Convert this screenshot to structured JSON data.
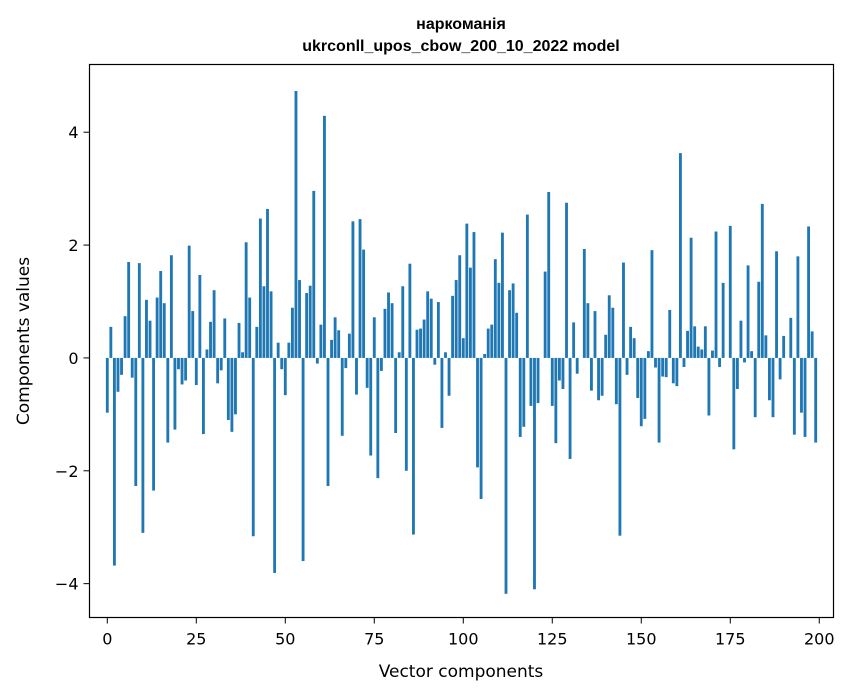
{
  "chart_data": {
    "type": "bar",
    "title": "наркоманія",
    "subtitle": "ukrconll_upos_cbow_200_10_2022 model",
    "xlabel": "Vector components",
    "ylabel": "Components values",
    "xlim": [
      -5,
      204
    ],
    "ylim": [
      -4.6,
      5.2
    ],
    "xticks": [
      0,
      25,
      50,
      75,
      100,
      125,
      150,
      175,
      200
    ],
    "yticks": [
      -4,
      -2,
      0,
      2,
      4
    ],
    "xtick_labels": [
      "0",
      "25",
      "50",
      "75",
      "100",
      "125",
      "150",
      "175",
      "200"
    ],
    "ytick_labels": [
      "−4",
      "−2",
      "0",
      "2",
      "4"
    ],
    "grid": false,
    "bar_color": "#1f77b4",
    "x": [
      0,
      1,
      2,
      3,
      4,
      5,
      6,
      7,
      8,
      9,
      10,
      11,
      12,
      13,
      14,
      15,
      16,
      17,
      18,
      19,
      20,
      21,
      22,
      23,
      24,
      25,
      26,
      27,
      28,
      29,
      30,
      31,
      32,
      33,
      34,
      35,
      36,
      37,
      38,
      39,
      40,
      41,
      42,
      43,
      44,
      45,
      46,
      47,
      48,
      49,
      50,
      51,
      52,
      53,
      54,
      55,
      56,
      57,
      58,
      59,
      60,
      61,
      62,
      63,
      64,
      65,
      66,
      67,
      68,
      69,
      70,
      71,
      72,
      73,
      74,
      75,
      76,
      77,
      78,
      79,
      80,
      81,
      82,
      83,
      84,
      85,
      86,
      87,
      88,
      89,
      90,
      91,
      92,
      93,
      94,
      95,
      96,
      97,
      98,
      99,
      100,
      101,
      102,
      103,
      104,
      105,
      106,
      107,
      108,
      109,
      110,
      111,
      112,
      113,
      114,
      115,
      116,
      117,
      118,
      119,
      120,
      121,
      122,
      123,
      124,
      125,
      126,
      127,
      128,
      129,
      130,
      131,
      132,
      133,
      134,
      135,
      136,
      137,
      138,
      139,
      140,
      141,
      142,
      143,
      144,
      145,
      146,
      147,
      148,
      149,
      150,
      151,
      152,
      153,
      154,
      155,
      156,
      157,
      158,
      159,
      160,
      161,
      162,
      163,
      164,
      165,
      166,
      167,
      168,
      169,
      170,
      171,
      172,
      173,
      174,
      175,
      176,
      177,
      178,
      179,
      180,
      181,
      182,
      183,
      184,
      185,
      186,
      187,
      188,
      189,
      190,
      191,
      192,
      193,
      194,
      195,
      196,
      197,
      198,
      199
    ],
    "values": [
      -0.97,
      0.55,
      -3.68,
      -0.6,
      -0.3,
      0.74,
      1.7,
      -0.35,
      -2.27,
      1.68,
      -3.1,
      1.03,
      0.66,
      -2.35,
      1.07,
      1.54,
      0.97,
      -1.5,
      1.82,
      -1.27,
      -0.2,
      -0.47,
      -0.4,
      1.99,
      0.83,
      -0.48,
      1.47,
      -1.35,
      0.15,
      0.64,
      1.2,
      -0.45,
      -0.22,
      0.7,
      -1.1,
      -1.31,
      -1.0,
      0.62,
      0.1,
      2.05,
      1.07,
      -3.16,
      0.55,
      2.47,
      1.27,
      2.64,
      1.18,
      -3.81,
      0.27,
      -0.2,
      -0.66,
      0.27,
      0.89,
      4.73,
      1.38,
      -3.6,
      1.15,
      1.28,
      2.96,
      -0.1,
      0.59,
      4.29,
      -2.27,
      0.32,
      0.72,
      0.49,
      -1.38,
      -0.18,
      0.43,
      2.42,
      -0.65,
      2.46,
      1.92,
      -0.53,
      -1.73,
      0.72,
      -2.13,
      -0.23,
      0.87,
      1.16,
      0.97,
      -1.33,
      0.1,
      1.27,
      -2.0,
      1.67,
      -3.13,
      0.5,
      0.52,
      0.68,
      1.18,
      1.05,
      -0.12,
      0.99,
      -1.24,
      0.1,
      -0.67,
      1.1,
      1.38,
      1.82,
      0.35,
      2.38,
      1.6,
      2.23,
      -1.94,
      -2.5,
      0.07,
      0.52,
      0.59,
      1.75,
      1.33,
      2.22,
      -4.18,
      1.2,
      1.32,
      0.8,
      -1.4,
      -1.22,
      2.54,
      -0.85,
      -4.1,
      -0.8,
      0.0,
      1.53,
      2.94,
      -0.85,
      -1.51,
      -0.4,
      -0.55,
      2.75,
      -1.79,
      0.63,
      -0.28,
      0.0,
      1.93,
      0.97,
      -0.58,
      0.83,
      -0.75,
      -0.67,
      0.41,
      1.11,
      0.89,
      -0.82,
      -3.15,
      1.69,
      -0.3,
      0.55,
      0.35,
      -0.71,
      -1.21,
      -1.08,
      0.12,
      1.91,
      -0.17,
      -1.5,
      -0.33,
      -0.34,
      0.85,
      -0.45,
      -0.5,
      3.63,
      -0.16,
      0.48,
      2.13,
      0.56,
      0.2,
      0.15,
      0.56,
      -1.02,
      0.13,
      2.24,
      -0.16,
      1.33,
      0.0,
      2.34,
      -1.62,
      -0.55,
      0.66,
      -0.08,
      1.64,
      0.12,
      -1.05,
      1.35,
      2.73,
      0.4,
      -0.75,
      -1.05,
      1.89,
      -0.38,
      0.39,
      0.0,
      0.71,
      -1.36,
      1.8,
      -0.97,
      -1.4,
      2.33,
      0.47,
      -1.5
    ]
  }
}
